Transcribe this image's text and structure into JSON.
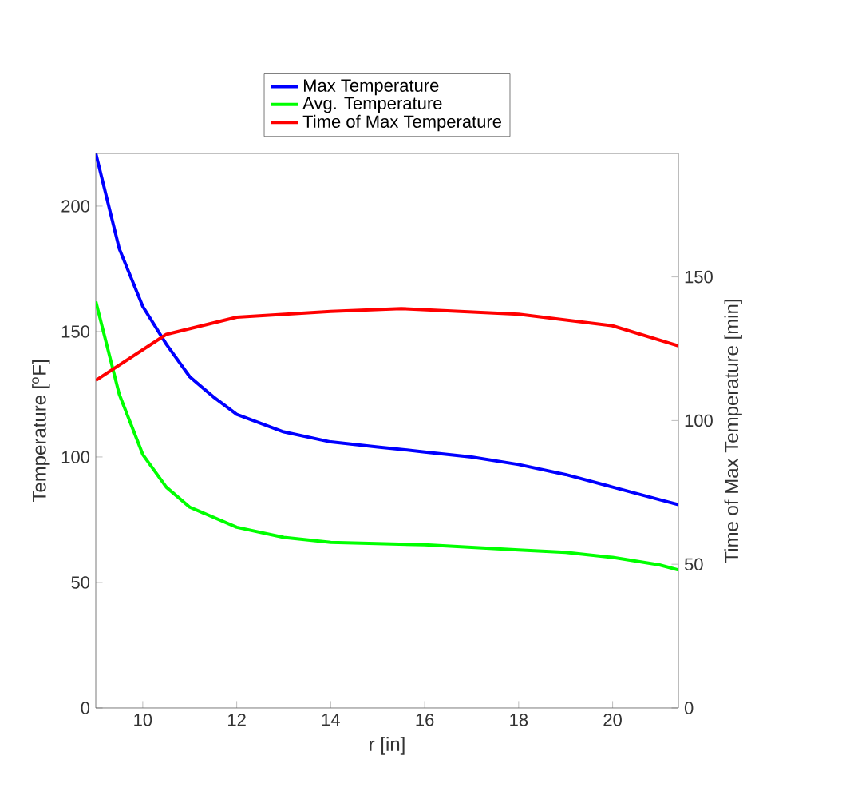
{
  "chart_data": {
    "type": "line",
    "xlabel": "r [in]",
    "ylabel": "Temperature [$^{o}$F]",
    "y2label": "Time of Max Temperature [min]",
    "xlim": [
      9,
      21.4
    ],
    "xticks": [
      10,
      12,
      14,
      16,
      18,
      20
    ],
    "ylim": [
      0,
      221
    ],
    "yticks": [
      0,
      50,
      100,
      150,
      200
    ],
    "y2lim": [
      0,
      193
    ],
    "y2ticks": [
      0,
      50,
      100,
      150
    ],
    "legend": "top",
    "grid": false,
    "marker": "none",
    "line_style": "solid",
    "series": [
      {
        "name": "Max Temperature",
        "color": "#0000ff",
        "x": [
          9,
          9.5,
          10,
          10.5,
          11,
          11.5,
          12,
          13,
          14,
          15,
          16,
          17,
          18,
          19,
          20,
          21,
          21.4
        ],
        "values": [
          221,
          183,
          160,
          145,
          132,
          124,
          117,
          110,
          106,
          104,
          102,
          100,
          97,
          93,
          88,
          83,
          81
        ]
      },
      {
        "name": "Avg. Temperature",
        "color": "#00ff00",
        "x": [
          9,
          9.5,
          10,
          10.5,
          11,
          12,
          13,
          14,
          16,
          18,
          19,
          20,
          21,
          21.4
        ],
        "values": [
          162,
          125,
          101,
          88,
          80,
          72,
          68,
          66,
          65,
          63,
          62,
          60,
          57,
          55
        ]
      },
      {
        "name": "Time of Max Temperature",
        "color": "#ff0000",
        "axis": "y2",
        "x": [
          9,
          10.5,
          12,
          14,
          15.5,
          18,
          20,
          21.4
        ],
        "values": [
          114,
          130,
          136,
          138,
          139,
          137,
          133,
          126
        ]
      }
    ]
  }
}
